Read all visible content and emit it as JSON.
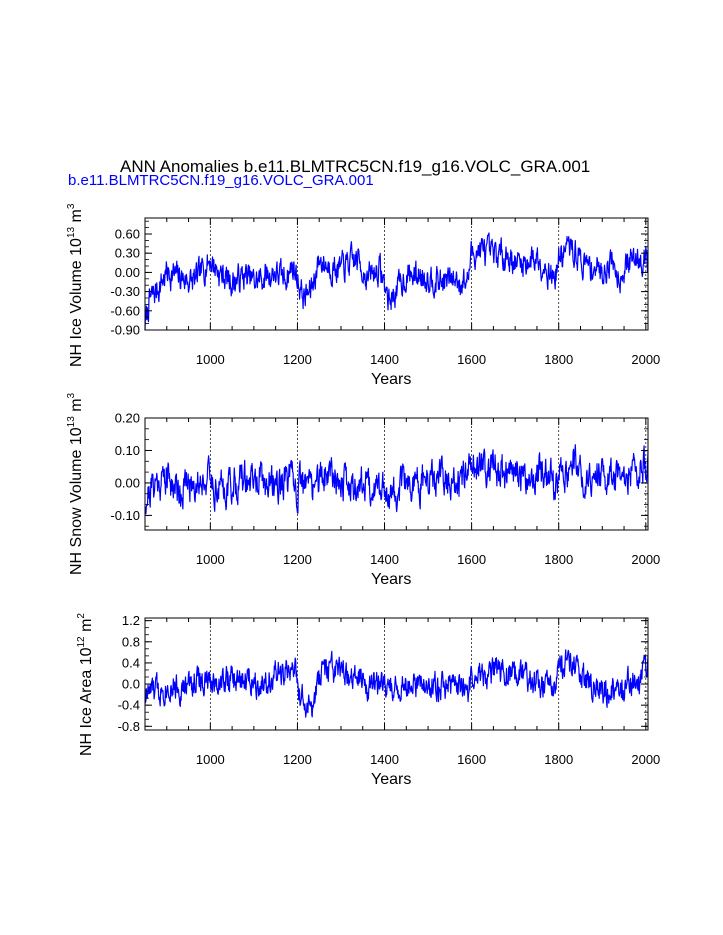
{
  "figure": {
    "title": "ANN Anomalies b.e11.BLMTRC5CN.f19_g16.VOLC_GRA.001",
    "subtitle": "b.e11.BLMTRC5CN.f19_g16.VOLC_GRA.001",
    "subtitle_color": "#0000ff",
    "line_color": "#0000ff"
  },
  "chart_data": [
    {
      "type": "line",
      "series_name": "b.e11.BLMTRC5CN.f19_g16.VOLC_GRA.001",
      "xlabel": "Years",
      "ylabel": {
        "main": "NH Ice Volume 10",
        "exp1": "13",
        "mid": " m",
        "exp2": "3"
      },
      "xlim": [
        850,
        2005
      ],
      "ylim": [
        -0.9,
        0.85
      ],
      "xticks": [
        1000,
        1200,
        1400,
        1600,
        1800,
        2000
      ],
      "xtick_labels": [
        "1000",
        "1200",
        "1400",
        "1600",
        "1800",
        "2000"
      ],
      "yticks": [
        -0.9,
        -0.6,
        -0.3,
        0.0,
        0.3,
        0.6
      ],
      "ytick_labels": [
        "-0.90",
        "-0.60",
        "-0.30",
        "0.00",
        "0.30",
        "0.60"
      ],
      "x_gridlines": [
        1000,
        1200,
        1400,
        1600,
        1800,
        2000
      ],
      "anchors": [
        [
          850,
          -0.85
        ],
        [
          860,
          -0.45
        ],
        [
          880,
          -0.25
        ],
        [
          900,
          0.0
        ],
        [
          920,
          -0.05
        ],
        [
          940,
          -0.1
        ],
        [
          960,
          -0.15
        ],
        [
          975,
          -0.05
        ],
        [
          990,
          0.12
        ],
        [
          1000,
          0.2
        ],
        [
          1020,
          0.0
        ],
        [
          1050,
          -0.15
        ],
        [
          1080,
          -0.05
        ],
        [
          1100,
          -0.15
        ],
        [
          1130,
          -0.05
        ],
        [
          1150,
          0.0
        ],
        [
          1170,
          -0.1
        ],
        [
          1190,
          0.1
        ],
        [
          1200,
          -0.1
        ],
        [
          1215,
          -0.4
        ],
        [
          1230,
          -0.3
        ],
        [
          1250,
          0.2
        ],
        [
          1270,
          0.1
        ],
        [
          1300,
          0.05
        ],
        [
          1320,
          0.15
        ],
        [
          1340,
          0.2
        ],
        [
          1360,
          -0.1
        ],
        [
          1375,
          0.0
        ],
        [
          1390,
          0.05
        ],
        [
          1400,
          -0.2
        ],
        [
          1410,
          -0.45
        ],
        [
          1430,
          -0.25
        ],
        [
          1450,
          -0.05
        ],
        [
          1480,
          -0.05
        ],
        [
          1500,
          -0.05
        ],
        [
          1530,
          -0.15
        ],
        [
          1560,
          -0.1
        ],
        [
          1590,
          -0.15
        ],
        [
          1600,
          0.3
        ],
        [
          1620,
          0.35
        ],
        [
          1650,
          0.25
        ],
        [
          1680,
          0.3
        ],
        [
          1700,
          0.15
        ],
        [
          1720,
          0.15
        ],
        [
          1750,
          0.25
        ],
        [
          1775,
          0.05
        ],
        [
          1790,
          -0.1
        ],
        [
          1800,
          0.2
        ],
        [
          1820,
          0.4
        ],
        [
          1840,
          0.3
        ],
        [
          1860,
          0.1
        ],
        [
          1880,
          0.1
        ],
        [
          1900,
          0.0
        ],
        [
          1920,
          0.2
        ],
        [
          1940,
          -0.05
        ],
        [
          1960,
          0.15
        ],
        [
          1980,
          0.25
        ],
        [
          2005,
          0.25
        ]
      ],
      "amplitude": 0.18,
      "seed": 7
    },
    {
      "type": "line",
      "series_name": "b.e11.BLMTRC5CN.f19_g16.VOLC_GRA.001",
      "xlabel": "Years",
      "ylabel": {
        "main": "NH Snow Volume 10",
        "exp1": "13",
        "mid": " m",
        "exp2": "3"
      },
      "xlim": [
        850,
        2005
      ],
      "ylim": [
        -0.145,
        0.2
      ],
      "xticks": [
        1000,
        1200,
        1400,
        1600,
        1800,
        2000
      ],
      "xtick_labels": [
        "1000",
        "1200",
        "1400",
        "1600",
        "1800",
        "2000"
      ],
      "yticks": [
        -0.1,
        0.0,
        0.1,
        0.2
      ],
      "ytick_labels": [
        "-0.10",
        "0.00",
        "0.10",
        "0.20"
      ],
      "x_gridlines": [
        1000,
        1200,
        1400,
        1600,
        1800,
        2000
      ],
      "anchors": [
        [
          850,
          -0.05
        ],
        [
          870,
          0.0
        ],
        [
          900,
          0.02
        ],
        [
          930,
          -0.02
        ],
        [
          960,
          0.0
        ],
        [
          990,
          0.02
        ],
        [
          1020,
          -0.02
        ],
        [
          1050,
          0.0
        ],
        [
          1080,
          0.01
        ],
        [
          1110,
          0.0
        ],
        [
          1150,
          0.0
        ],
        [
          1180,
          0.01
        ],
        [
          1200,
          -0.02
        ],
        [
          1230,
          0.0
        ],
        [
          1260,
          0.02
        ],
        [
          1280,
          0.05
        ],
        [
          1300,
          0.0
        ],
        [
          1330,
          -0.01
        ],
        [
          1360,
          0.0
        ],
        [
          1400,
          -0.02
        ],
        [
          1430,
          -0.02
        ],
        [
          1460,
          0.0
        ],
        [
          1500,
          0.0
        ],
        [
          1530,
          0.01
        ],
        [
          1560,
          0.0
        ],
        [
          1590,
          0.01
        ],
        [
          1600,
          0.04
        ],
        [
          1620,
          0.07
        ],
        [
          1640,
          0.05
        ],
        [
          1670,
          0.03
        ],
        [
          1700,
          0.02
        ],
        [
          1730,
          0.02
        ],
        [
          1760,
          0.03
        ],
        [
          1790,
          0.0
        ],
        [
          1800,
          0.02
        ],
        [
          1830,
          0.06
        ],
        [
          1850,
          0.04
        ],
        [
          1880,
          0.02
        ],
        [
          1910,
          0.01
        ],
        [
          1940,
          0.0
        ],
        [
          1970,
          0.03
        ],
        [
          2005,
          0.05
        ]
      ],
      "amplitude": 0.045,
      "seed": 21
    },
    {
      "type": "line",
      "series_name": "b.e11.BLMTRC5CN.f19_g16.VOLC_GRA.001",
      "xlabel": "Years",
      "ylabel": {
        "main": "NH Ice Area 10",
        "exp1": "12",
        "mid": " m",
        "exp2": "2"
      },
      "xlim": [
        850,
        2005
      ],
      "ylim": [
        -0.87,
        1.25
      ],
      "xticks": [
        1000,
        1200,
        1400,
        1600,
        1800,
        2000
      ],
      "xtick_labels": [
        "1000",
        "1200",
        "1400",
        "1600",
        "1800",
        "2000"
      ],
      "yticks": [
        -0.8,
        -0.4,
        0.0,
        0.4,
        0.8,
        1.2
      ],
      "ytick_labels": [
        "-0.8",
        "-0.4",
        "0.0",
        "0.4",
        "0.8",
        "1.2"
      ],
      "x_gridlines": [
        1000,
        1200,
        1400,
        1600,
        1800,
        2000
      ],
      "anchors": [
        [
          850,
          -0.2
        ],
        [
          880,
          -0.1
        ],
        [
          910,
          0.0
        ],
        [
          940,
          -0.1
        ],
        [
          970,
          0.1
        ],
        [
          1000,
          0.0
        ],
        [
          1030,
          0.1
        ],
        [
          1060,
          0.05
        ],
        [
          1090,
          0.1
        ],
        [
          1120,
          0.05
        ],
        [
          1150,
          0.15
        ],
        [
          1180,
          0.2
        ],
        [
          1195,
          0.35
        ],
        [
          1200,
          -0.1
        ],
        [
          1215,
          -0.4
        ],
        [
          1235,
          -0.5
        ],
        [
          1250,
          0.1
        ],
        [
          1265,
          0.3
        ],
        [
          1290,
          0.2
        ],
        [
          1320,
          0.1
        ],
        [
          1350,
          0.1
        ],
        [
          1380,
          0.0
        ],
        [
          1410,
          -0.1
        ],
        [
          1440,
          0.0
        ],
        [
          1470,
          -0.1
        ],
        [
          1500,
          0.0
        ],
        [
          1530,
          -0.05
        ],
        [
          1560,
          0.0
        ],
        [
          1590,
          -0.1
        ],
        [
          1600,
          0.1
        ],
        [
          1630,
          0.2
        ],
        [
          1660,
          0.25
        ],
        [
          1690,
          0.2
        ],
        [
          1720,
          0.1
        ],
        [
          1750,
          0.1
        ],
        [
          1775,
          -0.1
        ],
        [
          1795,
          0.1
        ],
        [
          1815,
          0.4
        ],
        [
          1830,
          0.3
        ],
        [
          1860,
          0.1
        ],
        [
          1890,
          -0.1
        ],
        [
          1920,
          -0.05
        ],
        [
          1950,
          0.0
        ],
        [
          1980,
          0.1
        ],
        [
          2005,
          0.3
        ]
      ],
      "amplitude": 0.22,
      "seed": 33
    }
  ]
}
